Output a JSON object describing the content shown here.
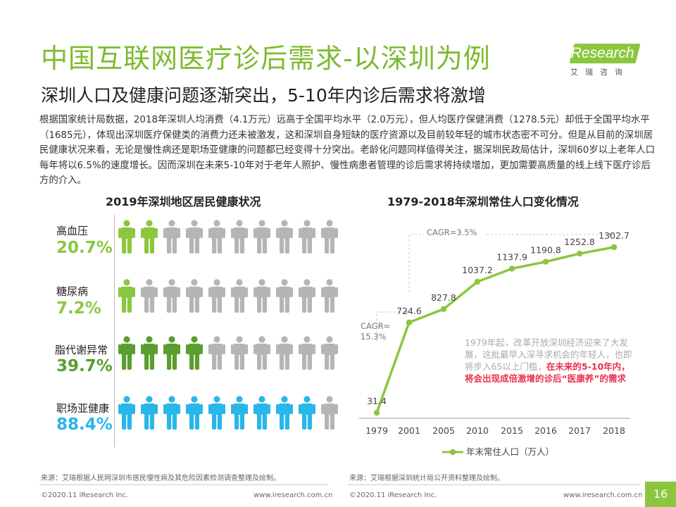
{
  "header": {
    "title": "中国互联网医疗诊后需求-以深圳为例",
    "subtitle": "深圳人口及健康问题逐渐突出，5-10年内诊后需求将激增",
    "logo_text": "iResearch",
    "logo_cn": "艾瑞咨询"
  },
  "body_text": "根据国家统计局数据，2018年深圳人均消费（4.1万元）远高于全国平均水平（2.0万元），但人均医疗保健消费（1278.5元）却低于全国平均水平（1685元），体现出深圳医疗保健类的消费力还未被激发，这和深圳自身短缺的医疗资源以及目前较年轻的城市状态密不可分。但是从目前的深圳居民健康状况来看，无论是慢性病还是职场亚健康的问题都已经变得十分突出。老龄化问题同样值得关注，据深圳民政局估计，深圳60岁以上老年人口每年将以6.5%的速度增长。因而深圳在未来5-10年对于老年人照护、慢性病患者管理的诊后需求将持续增加，更加需要高质量的线上线下医疗诊后方的介入。",
  "left_panel": {
    "title": "2019年深圳地区居民健康状况",
    "rows": [
      {
        "label": "高血压",
        "value": "20.7%",
        "filled": 2,
        "color": "#8cc63f"
      },
      {
        "label": "糖尿病",
        "value": "7.2%",
        "filled": 1,
        "color": "#8cc63f"
      },
      {
        "label": "脂代谢异常",
        "value": "39.7%",
        "filled": 4,
        "color": "#5a9e2f"
      },
      {
        "label": "职场亚健康",
        "value": "88.4%",
        "filled": 9,
        "color": "#29b6e8"
      }
    ],
    "total_icons": 10,
    "gray": "#b5b5b5",
    "source": "来源：艾瑞根据人民网深圳市居民慢性病及其危险因素检测调查整理及绘制。"
  },
  "chart_data": {
    "type": "line",
    "title": "1979-2018年深圳常住人口变化情况",
    "categories": [
      "1979",
      "2001",
      "2005",
      "2010",
      "2015",
      "2016",
      "2017",
      "2018"
    ],
    "series": [
      {
        "name": "年末常住人口（万人）",
        "values": [
          31.4,
          724.6,
          827.8,
          1037.2,
          1137.9,
          1190.8,
          1252.8,
          1302.7
        ],
        "color": "#8cc63f"
      }
    ],
    "ylim": [
      0,
      1400
    ],
    "grid": false,
    "legend": "bottom",
    "annotations": [
      {
        "text": "CAGR=\n15.3%"
      },
      {
        "text": "CAGR=3.5%"
      }
    ],
    "note": {
      "plain": "1979年起，改革开放深圳经济迎来了大发展，这批最早入深寻求机会的年轻人，也即将步入65以上门槛，",
      "highlight": "在未来的5-10年内，将会出现成倍激增的诊后“医康养”的需求"
    },
    "source": "来源：艾瑞根据深圳统计局公开资料整理及绘制。"
  },
  "footer": {
    "left_copyright": "©2020.11 iResearch Inc.",
    "left_url": "www.iresearch.com.cn",
    "right_copyright": "©2020.11 iResearch Inc.",
    "right_url": "www.iresearch.com.cn",
    "page": "16"
  }
}
